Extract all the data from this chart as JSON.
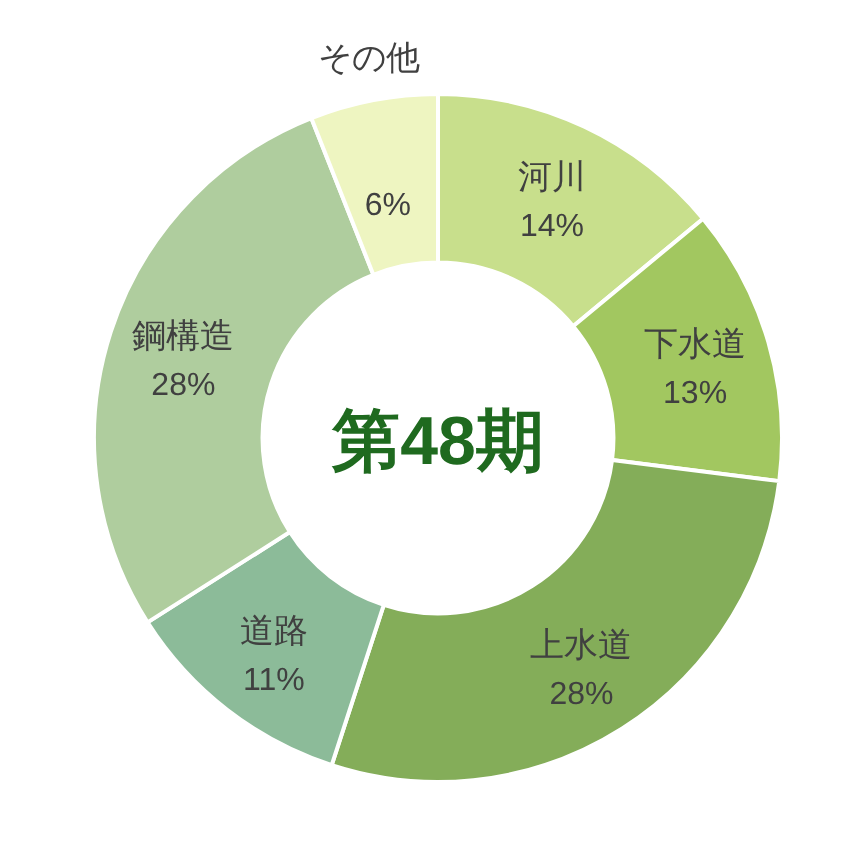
{
  "chart_data": {
    "type": "donut",
    "title": "第48期",
    "categories": [
      "河川",
      "下水道",
      "上水道",
      "道路",
      "鋼構造",
      "その他"
    ],
    "values": [
      14,
      13,
      28,
      11,
      28,
      6
    ],
    "value_labels": [
      "14%",
      "13%",
      "28%",
      "11%",
      "28%",
      "6%"
    ],
    "colors": [
      "#c8df8c",
      "#a2c760",
      "#84ad59",
      "#8cbb99",
      "#afcd9e",
      "#eef5c1"
    ],
    "legend": false
  }
}
